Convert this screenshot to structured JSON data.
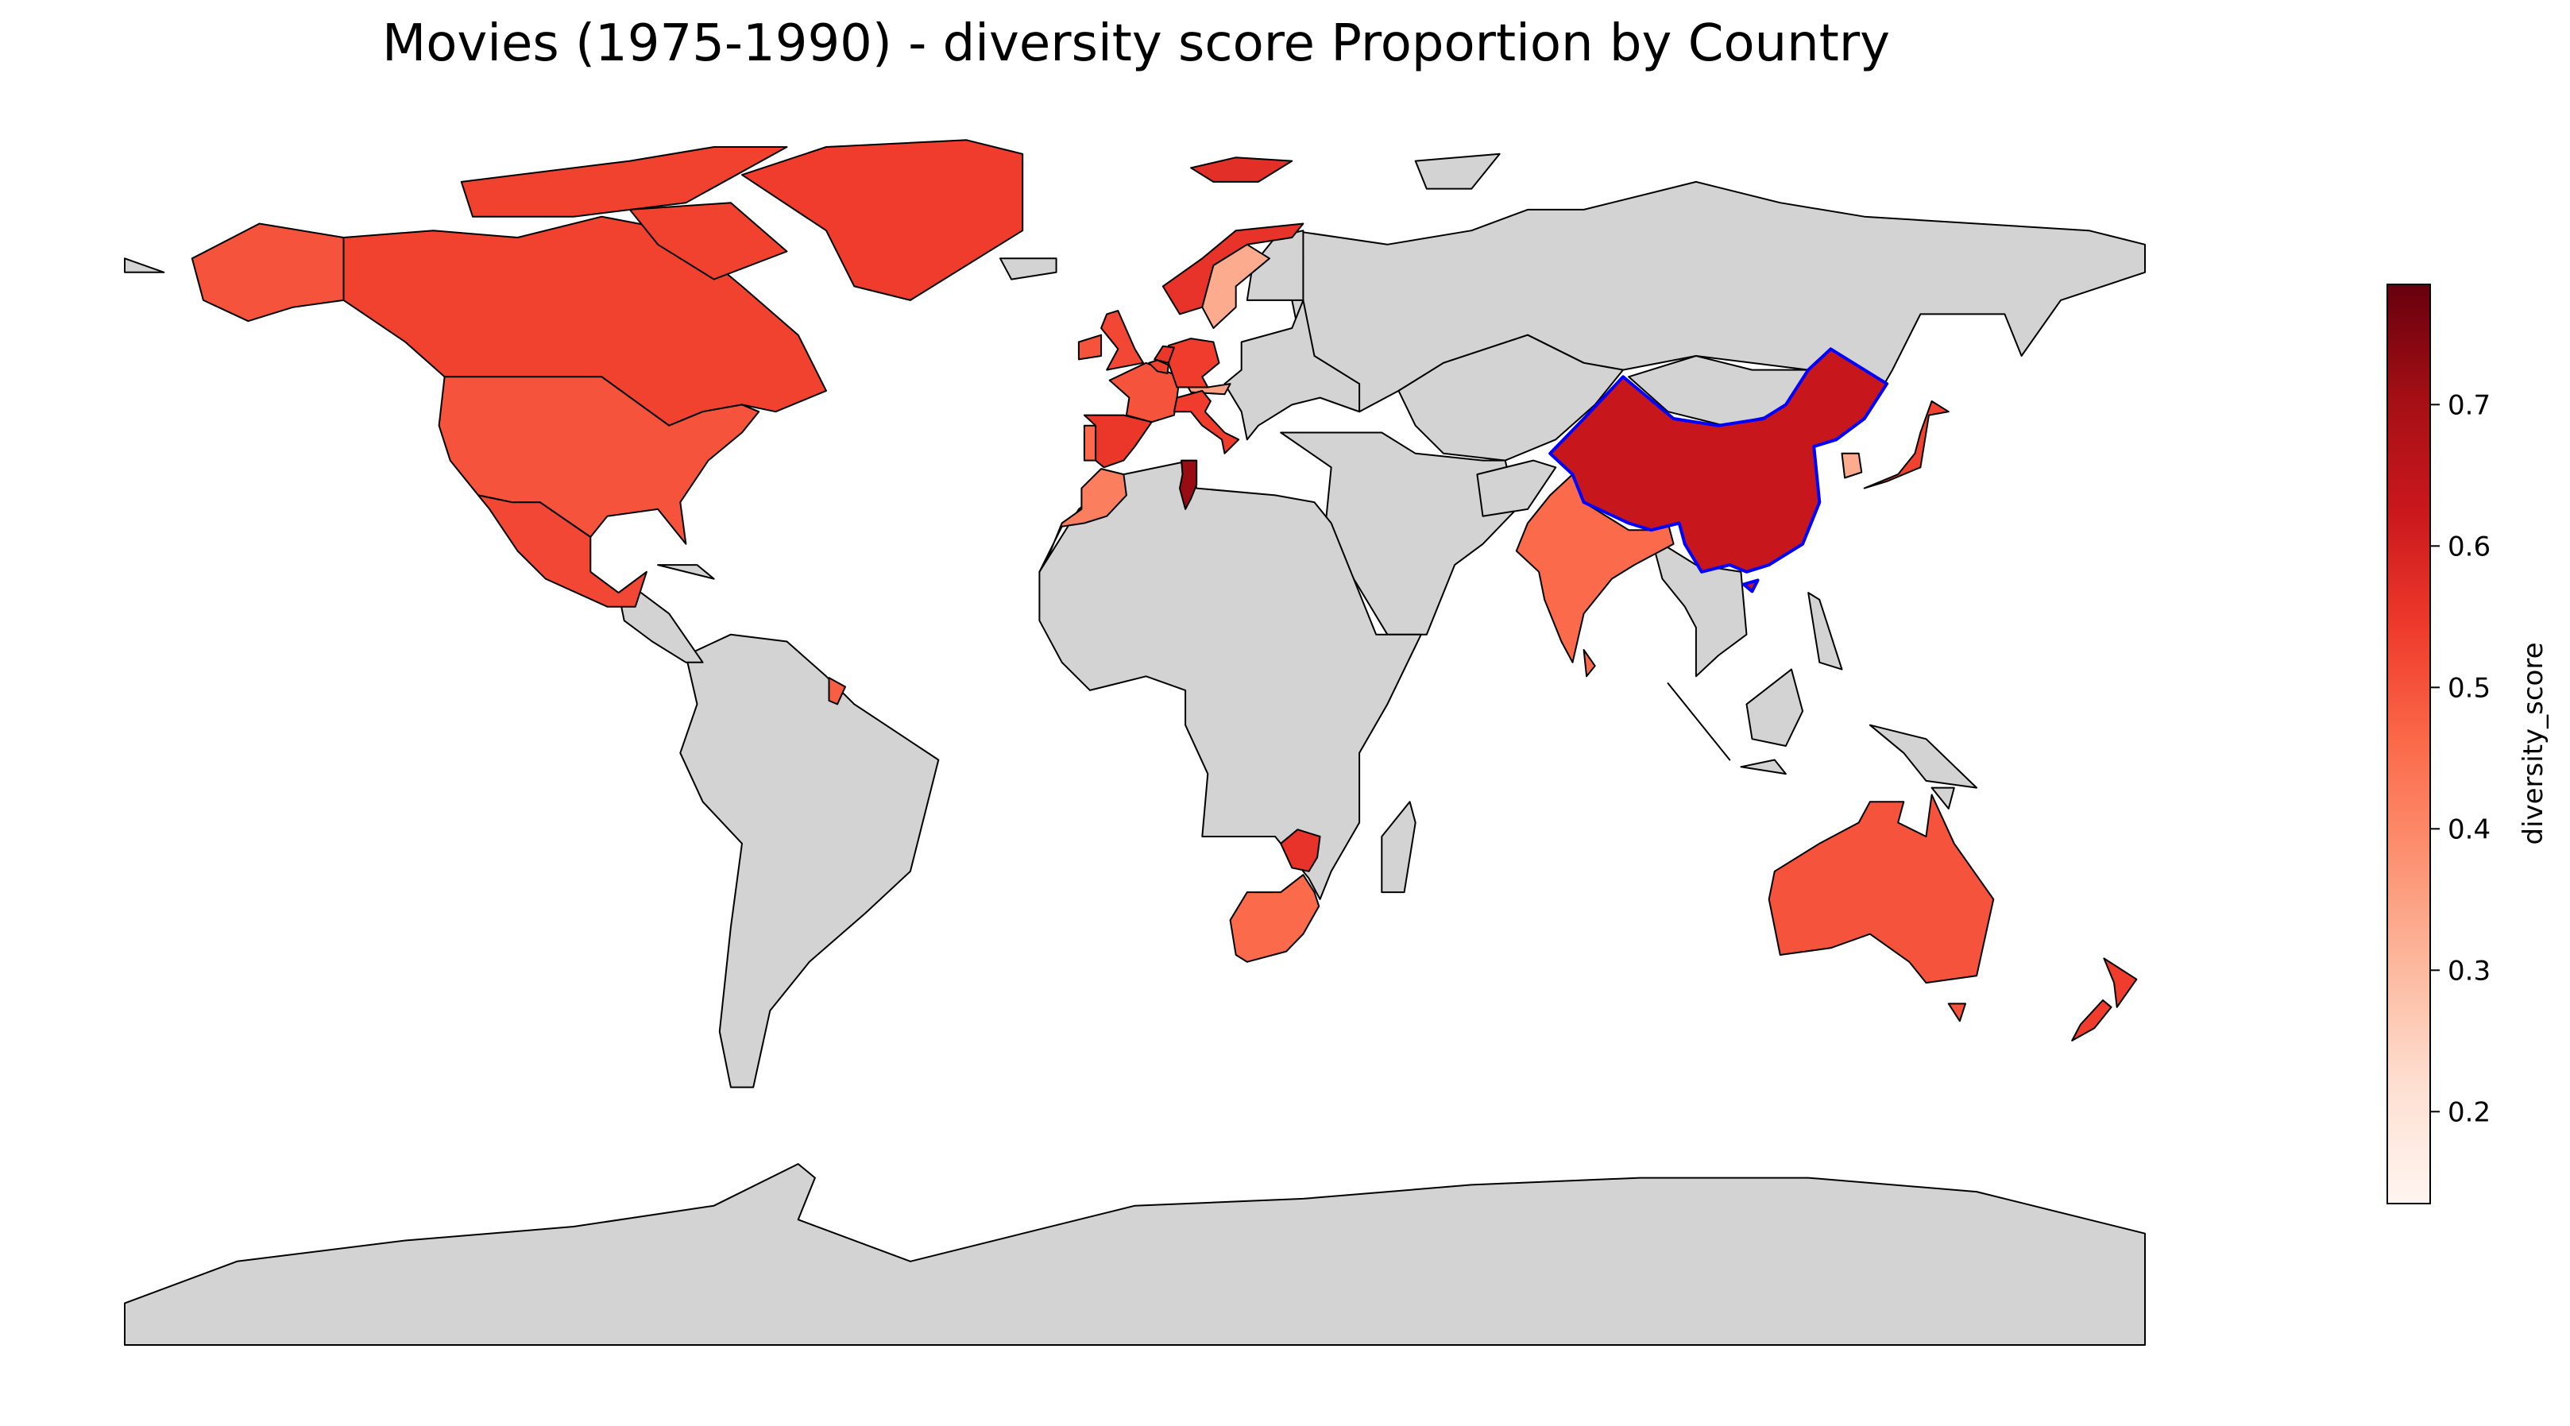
{
  "title": "Movies (1975-1990) - diversity score Proportion by Country",
  "colorbar": {
    "label": "diversity_score",
    "min": 0.135,
    "max": 0.785,
    "ticks": [
      "0.2",
      "0.3",
      "0.4",
      "0.5",
      "0.6",
      "0.7"
    ],
    "colormap": "Reds"
  },
  "colors": {
    "no_data": "#d3d3d3",
    "border": "#000000",
    "highlight": "#0000ff",
    "ocean": "#ffffff"
  },
  "chart_data": {
    "type": "choropleth",
    "metric": "diversity_score",
    "highlighted_country": "China",
    "countries": [
      {
        "name": "Canada",
        "value": 0.53
      },
      {
        "name": "United States",
        "value": 0.5
      },
      {
        "name": "Mexico",
        "value": 0.52
      },
      {
        "name": "Greenland",
        "value": 0.54
      },
      {
        "name": "French Guiana",
        "value": 0.48
      },
      {
        "name": "Norway",
        "value": 0.56
      },
      {
        "name": "Sweden",
        "value": 0.33
      },
      {
        "name": "United Kingdom",
        "value": 0.52
      },
      {
        "name": "Ireland",
        "value": 0.5
      },
      {
        "name": "France",
        "value": 0.5
      },
      {
        "name": "Germany",
        "value": 0.54
      },
      {
        "name": "Belgium",
        "value": 0.53
      },
      {
        "name": "Netherlands",
        "value": 0.55
      },
      {
        "name": "Italy",
        "value": 0.54
      },
      {
        "name": "Spain",
        "value": 0.55
      },
      {
        "name": "Portugal",
        "value": 0.46
      },
      {
        "name": "Austria",
        "value": 0.35
      },
      {
        "name": "Svalbard",
        "value": 0.57
      },
      {
        "name": "Morocco",
        "value": 0.42
      },
      {
        "name": "Tunisia",
        "value": 0.72
      },
      {
        "name": "India",
        "value": 0.46
      },
      {
        "name": "China",
        "value": 0.63
      },
      {
        "name": "Japan",
        "value": 0.53
      },
      {
        "name": "South Korea",
        "value": 0.33
      },
      {
        "name": "Zimbabwe",
        "value": 0.56
      },
      {
        "name": "South Africa",
        "value": 0.46
      },
      {
        "name": "Australia",
        "value": 0.5
      },
      {
        "name": "New Zealand",
        "value": 0.54
      }
    ]
  }
}
